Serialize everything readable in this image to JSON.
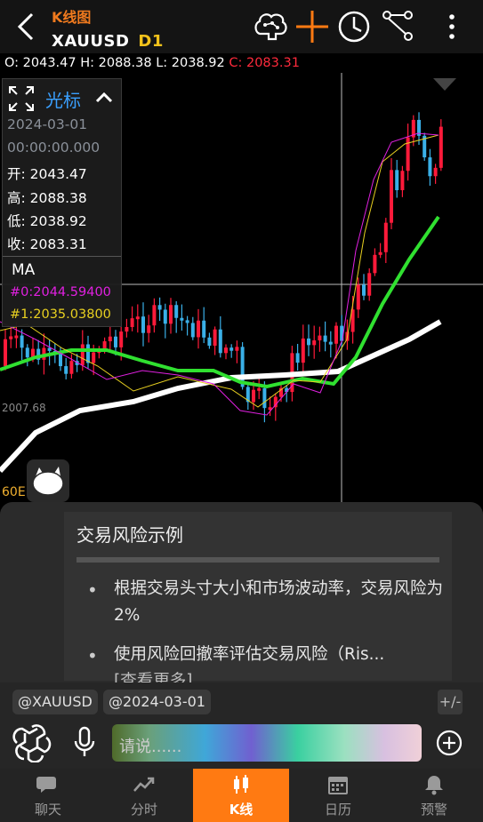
{
  "header": {
    "subtitle": "K线图",
    "symbol": "XAUUSD",
    "timeframe": "D1",
    "icons": [
      "back-arrow-icon",
      "brain-icon",
      "crosshair-icon",
      "clock-icon",
      "drawing-tool-icon",
      "more-vert-icon"
    ]
  },
  "ohlc_bar": {
    "o": "O: 2043.47",
    "h": "H: 2088.38",
    "l": "L: 2038.92",
    "c": "C: 2083.31"
  },
  "cursor_panel": {
    "title": "光标",
    "date": "2024-03-01",
    "time": "00:00:00.000",
    "open": "开: 2043.47",
    "high": "高: 2088.38",
    "low": "低: 2038.92",
    "close": "收: 2083.31",
    "indicator": "MA",
    "ma0": "#0:2044.59400",
    "ma1": "#1:2035.03800"
  },
  "chart_labels": {
    "price_tick": "2007.68",
    "period": "60E"
  },
  "colors": {
    "accent": "#ff7a12",
    "bull": "#ff1a3a",
    "bear": "#3ab0e8",
    "ma_magenta": "#e020e0",
    "ma_yellow": "#e8d020",
    "ma_green": "#30e030",
    "ma_white": "#ffffff"
  },
  "assistant": {
    "card_title": "交易风险示例",
    "bullets": [
      "根据交易头寸大小和市场波动率，交易风险为 2%",
      "使用风险回撤率评估交易风险（Ris..."
    ],
    "bullet_overflow": "[查看更多]",
    "chips": [
      "@XAUUSD",
      "@2024-03-01"
    ],
    "plus_minus": "+/-",
    "input_placeholder": "请说......"
  },
  "nav": {
    "tabs": [
      {
        "label": "聊天",
        "icon": "chat-icon"
      },
      {
        "label": "分时",
        "icon": "trend-icon"
      },
      {
        "label": "K线",
        "icon": "candlestick-icon"
      },
      {
        "label": "日历",
        "icon": "calendar-icon"
      },
      {
        "label": "预警",
        "icon": "bell-icon"
      }
    ],
    "active": "K线"
  }
}
